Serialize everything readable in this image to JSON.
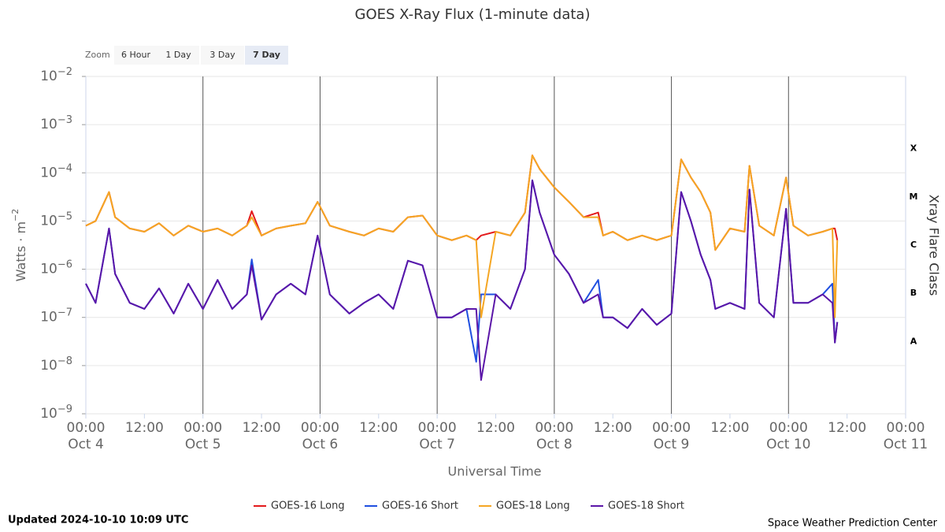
{
  "chart_data": {
    "type": "line",
    "title": "GOES X-Ray Flux (1-minute data)",
    "xlabel": "Universal Time",
    "ylabel": "Watts · m",
    "ylabel_exponent": "−2",
    "y2label": "Xray Flare Class",
    "ylog": true,
    "grid": true,
    "legend": "bottom",
    "zoom": {
      "label": "Zoom",
      "buttons": [
        "6 Hour",
        "1 Day",
        "3 Day",
        "7 Day"
      ],
      "selected": 3
    },
    "updated": "Updated 2024-10-10 10:09 UTC",
    "source": "Space Weather Prediction Center",
    "ylim": [
      1e-09,
      0.01
    ],
    "yticks": [
      {
        "value": 1e-09,
        "label": "10",
        "exponent": "−9"
      },
      {
        "value": 1e-08,
        "label": "10",
        "exponent": "−8"
      },
      {
        "value": 1e-07,
        "label": "10",
        "exponent": "−7"
      },
      {
        "value": 1e-06,
        "label": "10",
        "exponent": "−6"
      },
      {
        "value": 1e-05,
        "label": "10",
        "exponent": "−5"
      },
      {
        "value": 0.0001,
        "label": "10",
        "exponent": "−4"
      },
      {
        "value": 0.001,
        "label": "10",
        "exponent": "−3"
      },
      {
        "value": 0.01,
        "label": "10",
        "exponent": "−2"
      }
    ],
    "flare_classes": [
      {
        "label": "A",
        "value": 1e-08
      },
      {
        "label": "B",
        "value": 1e-07
      },
      {
        "label": "C",
        "value": 1e-06
      },
      {
        "label": "M",
        "value": 1e-05
      },
      {
        "label": "X",
        "value": 0.0001
      }
    ],
    "xlim": [
      "Oct 4 00:00",
      "Oct 11 00:00"
    ],
    "xticks": [
      {
        "value": "Oct 4 00:00",
        "label": "00:00",
        "date": "Oct 4"
      },
      {
        "value": "Oct 4 12:00",
        "label": "12:00"
      },
      {
        "value": "Oct 5 00:00",
        "label": "00:00",
        "date": "Oct 5"
      },
      {
        "value": "Oct 5 12:00",
        "label": "12:00"
      },
      {
        "value": "Oct 6 00:00",
        "label": "00:00",
        "date": "Oct 6"
      },
      {
        "value": "Oct 6 12:00",
        "label": "12:00"
      },
      {
        "value": "Oct 7 00:00",
        "label": "00:00",
        "date": "Oct 7"
      },
      {
        "value": "Oct 7 12:00",
        "label": "12:00"
      },
      {
        "value": "Oct 8 00:00",
        "label": "00:00",
        "date": "Oct 8"
      },
      {
        "value": "Oct 8 12:00",
        "label": "12:00"
      },
      {
        "value": "Oct 9 00:00",
        "label": "00:00",
        "date": "Oct 9"
      },
      {
        "value": "Oct 9 12:00",
        "label": "12:00"
      },
      {
        "value": "Oct 10 00:00",
        "label": "00:00",
        "date": "Oct 10"
      },
      {
        "value": "Oct 10 12:00",
        "label": "12:00"
      },
      {
        "value": "Oct 11 00:00",
        "label": "00:00",
        "date": "Oct 11"
      }
    ],
    "x": [
      "Oct 4 00:00",
      "Oct 4 02:00",
      "Oct 4 04:45",
      "Oct 4 06:00",
      "Oct 4 09:00",
      "Oct 4 12:00",
      "Oct 4 15:00",
      "Oct 4 18:00",
      "Oct 4 21:00",
      "Oct 5 00:00",
      "Oct 5 03:00",
      "Oct 5 06:00",
      "Oct 5 09:00",
      "Oct 5 10:00",
      "Oct 5 12:00",
      "Oct 5 15:00",
      "Oct 5 18:00",
      "Oct 5 21:00",
      "Oct 5 23:30",
      "Oct 6 02:00",
      "Oct 6 06:00",
      "Oct 6 09:00",
      "Oct 6 12:00",
      "Oct 6 15:00",
      "Oct 6 18:00",
      "Oct 6 21:00",
      "Oct 7 00:00",
      "Oct 7 03:00",
      "Oct 7 06:00",
      "Oct 7 08:00",
      "Oct 7 09:00",
      "Oct 7 12:00",
      "Oct 7 15:00",
      "Oct 7 18:00",
      "Oct 7 19:30",
      "Oct 7 21:00",
      "Oct 8 00:00",
      "Oct 8 03:00",
      "Oct 8 06:00",
      "Oct 8 09:00",
      "Oct 8 10:00",
      "Oct 8 12:00",
      "Oct 8 15:00",
      "Oct 8 18:00",
      "Oct 8 21:00",
      "Oct 9 00:00",
      "Oct 9 02:00",
      "Oct 9 04:00",
      "Oct 9 06:00",
      "Oct 9 08:00",
      "Oct 9 09:00",
      "Oct 9 12:00",
      "Oct 9 15:00",
      "Oct 9 16:00",
      "Oct 9 18:00",
      "Oct 9 21:00",
      "Oct 9 23:30",
      "Oct 10 01:00",
      "Oct 10 04:00",
      "Oct 10 07:00",
      "Oct 10 09:00",
      "Oct 10 09:30",
      "Oct 10 10:00"
    ],
    "series": [
      {
        "name": "GOES-16 Long",
        "color": "#e31a1c",
        "values": [
          8e-06,
          1e-05,
          4e-05,
          1.2e-05,
          7e-06,
          6e-06,
          9e-06,
          5e-06,
          8e-06,
          6e-06,
          7e-06,
          5e-06,
          8e-06,
          1.6e-05,
          5e-06,
          7e-06,
          8e-06,
          9e-06,
          2.5e-05,
          8e-06,
          6e-06,
          5e-06,
          7e-06,
          6e-06,
          1.2e-05,
          1.3e-05,
          5e-06,
          4e-06,
          5e-06,
          4e-06,
          5e-06,
          6e-06,
          5e-06,
          1.5e-05,
          0.00023,
          0.00012,
          5e-05,
          2.5e-05,
          1.2e-05,
          1.5e-05,
          5e-06,
          6e-06,
          4e-06,
          5e-06,
          4e-06,
          5e-06,
          0.00019,
          8e-05,
          4e-05,
          1.5e-05,
          2.5e-06,
          7e-06,
          6e-06,
          0.00014,
          8e-06,
          5e-06,
          8e-05,
          8e-06,
          5e-06,
          6e-06,
          7e-06,
          7e-06,
          4e-06
        ]
      },
      {
        "name": "GOES-16 Short",
        "color": "#1f4fe0",
        "values": [
          5e-07,
          2e-07,
          7e-06,
          8e-07,
          2e-07,
          1.5e-07,
          4e-07,
          1.2e-07,
          5e-07,
          1.5e-07,
          6e-07,
          1.5e-07,
          3e-07,
          1.6e-06,
          9e-08,
          3e-07,
          5e-07,
          3e-07,
          5e-06,
          3e-07,
          1.2e-07,
          2e-07,
          3e-07,
          1.5e-07,
          1.5e-06,
          1.2e-06,
          1e-07,
          1e-07,
          1.5e-07,
          1.2e-08,
          3e-07,
          3e-07,
          1.5e-07,
          1e-06,
          7e-05,
          1.5e-05,
          2e-06,
          8e-07,
          2e-07,
          6e-07,
          1e-07,
          1e-07,
          6e-08,
          1.5e-07,
          7e-08,
          1.2e-07,
          4e-05,
          1e-05,
          2e-06,
          6e-07,
          1.5e-07,
          2e-07,
          1.5e-07,
          4.5e-05,
          2e-07,
          1e-07,
          1.8e-05,
          2e-07,
          2e-07,
          3e-07,
          5e-07,
          3e-08,
          8e-08
        ]
      },
      {
        "name": "GOES-18 Long",
        "color": "#f5a623",
        "values": [
          8e-06,
          1e-05,
          4e-05,
          1.2e-05,
          7e-06,
          6e-06,
          9e-06,
          5e-06,
          8e-06,
          6e-06,
          7e-06,
          5e-06,
          8e-06,
          1.2e-05,
          5e-06,
          7e-06,
          8e-06,
          9e-06,
          2.5e-05,
          8e-06,
          6e-06,
          5e-06,
          7e-06,
          6e-06,
          1.2e-05,
          1.3e-05,
          5e-06,
          4e-06,
          5e-06,
          4e-06,
          1e-07,
          6e-06,
          5e-06,
          1.5e-05,
          0.00023,
          0.00012,
          5e-05,
          2.5e-05,
          1.2e-05,
          1.2e-05,
          5e-06,
          6e-06,
          4e-06,
          5e-06,
          4e-06,
          5e-06,
          0.00019,
          8e-05,
          4e-05,
          1.5e-05,
          2.5e-06,
          7e-06,
          6e-06,
          0.00014,
          8e-06,
          5e-06,
          8e-05,
          8e-06,
          5e-06,
          6e-06,
          7e-06,
          1e-07,
          4e-06
        ]
      },
      {
        "name": "GOES-18 Short",
        "color": "#5b16a8",
        "values": [
          5e-07,
          2e-07,
          7e-06,
          8e-07,
          2e-07,
          1.5e-07,
          4e-07,
          1.2e-07,
          5e-07,
          1.5e-07,
          6e-07,
          1.5e-07,
          3e-07,
          1.2e-06,
          9e-08,
          3e-07,
          5e-07,
          3e-07,
          5e-06,
          3e-07,
          1.2e-07,
          2e-07,
          3e-07,
          1.5e-07,
          1.5e-06,
          1.2e-06,
          1e-07,
          1e-07,
          1.5e-07,
          1.5e-07,
          5e-09,
          3e-07,
          1.5e-07,
          1e-06,
          7e-05,
          1.5e-05,
          2e-06,
          8e-07,
          2e-07,
          3e-07,
          1e-07,
          1e-07,
          6e-08,
          1.5e-07,
          7e-08,
          1.2e-07,
          4e-05,
          1e-05,
          2e-06,
          6e-07,
          1.5e-07,
          2e-07,
          1.5e-07,
          4.5e-05,
          2e-07,
          1e-07,
          1.8e-05,
          2e-07,
          2e-07,
          3e-07,
          2e-07,
          3e-08,
          8e-08
        ]
      }
    ]
  }
}
